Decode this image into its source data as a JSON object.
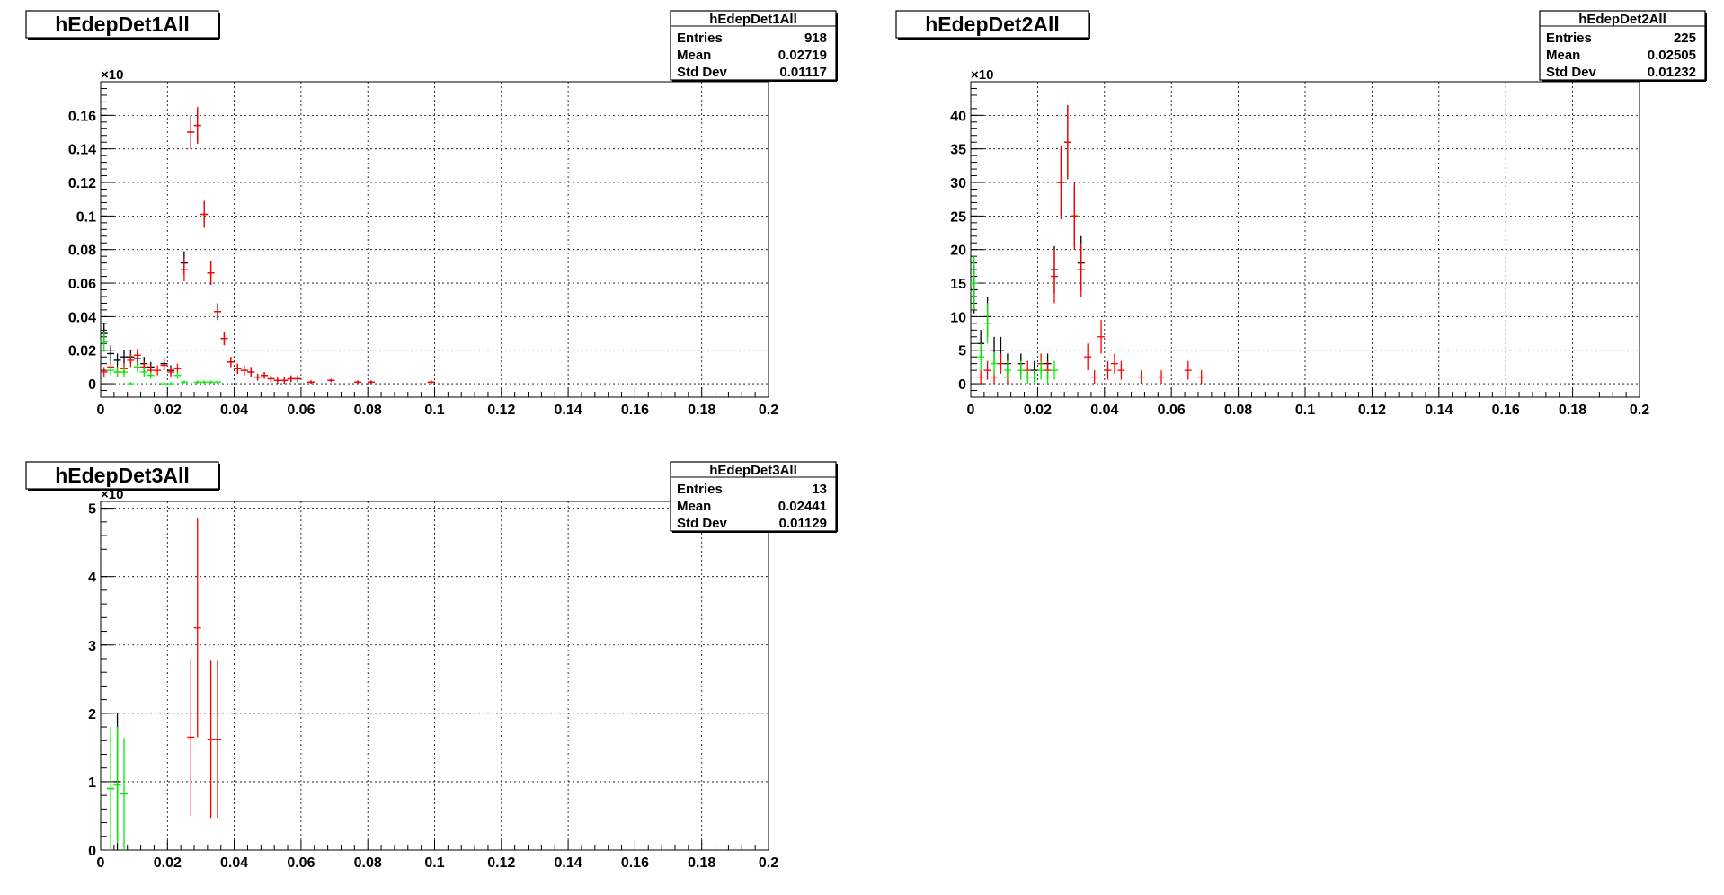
{
  "chart_data": [
    {
      "type": "scatter",
      "title": "hEdepDet1All",
      "stats": {
        "title": "hEdepDet1All",
        "rows": [
          [
            "Entries",
            "918"
          ],
          [
            "Mean",
            "0.02719"
          ],
          [
            "Std Dev",
            "0.01117"
          ]
        ]
      },
      "y_multiplier": "×10",
      "xlim": [
        0,
        0.2
      ],
      "ylim": [
        -0.008,
        0.18
      ],
      "grid": true,
      "x_ticks": [
        0,
        0.02,
        0.04,
        0.06,
        0.08,
        0.1,
        0.12,
        0.14,
        0.16,
        0.18,
        0.2
      ],
      "x_tick_labels": [
        "0",
        "0.02",
        "0.04",
        "0.06",
        "0.08",
        "0.1",
        "0.12",
        "0.14",
        "0.16",
        "0.18",
        "0.2"
      ],
      "y_ticks": [
        0,
        0.02,
        0.04,
        0.06,
        0.08,
        0.1,
        0.12,
        0.14,
        0.16
      ],
      "y_tick_labels": [
        "0",
        "0.02",
        "0.04",
        "0.06",
        "0.08",
        "0.1",
        "0.12",
        "0.14",
        "0.16"
      ],
      "series": [
        {
          "color": "#000000",
          "points": [
            [
              0.001,
              0.03,
              0.006
            ],
            [
              0.003,
              0.018,
              0.005
            ],
            [
              0.005,
              0.014,
              0.004
            ],
            [
              0.007,
              0.016,
              0.004
            ],
            [
              0.009,
              0.016,
              0.004
            ],
            [
              0.011,
              0.015,
              0.004
            ],
            [
              0.013,
              0.012,
              0.004
            ],
            [
              0.015,
              0.01,
              0.003
            ],
            [
              0.019,
              0.012,
              0.004
            ],
            [
              0.021,
              0.008,
              0.003
            ],
            [
              0.025,
              0.072,
              0.007
            ],
            [
              0.027,
              0.15,
              0.01
            ],
            [
              0.029,
              0.154,
              0.01
            ],
            [
              0.031,
              0.101,
              0.008
            ],
            [
              0.033,
              0.066,
              0.007
            ],
            [
              0.035,
              0.043,
              0.005
            ],
            [
              0.037,
              0.027,
              0.004
            ],
            [
              0.039,
              0.013,
              0.003
            ],
            [
              0.041,
              0.009,
              0.003
            ],
            [
              0.043,
              0.008,
              0.003
            ],
            [
              0.045,
              0.007,
              0.003
            ],
            [
              0.047,
              0.004,
              0.002
            ],
            [
              0.049,
              0.005,
              0.002
            ],
            [
              0.051,
              0.003,
              0.002
            ],
            [
              0.053,
              0.002,
              0.002
            ],
            [
              0.055,
              0.002,
              0.002
            ],
            [
              0.057,
              0.003,
              0.002
            ],
            [
              0.059,
              0.003,
              0.002
            ],
            [
              0.063,
              0.001,
              0.001
            ],
            [
              0.069,
              0.002,
              0.001
            ],
            [
              0.077,
              0.001,
              0.001
            ],
            [
              0.081,
              0.001,
              0.001
            ],
            [
              0.099,
              0.001,
              0.001
            ]
          ]
        },
        {
          "color": "#ff0000",
          "points": [
            [
              0.001,
              0.007,
              0.003
            ],
            [
              0.003,
              0.01,
              0.003
            ],
            [
              0.005,
              0.007,
              0.003
            ],
            [
              0.007,
              0.009,
              0.003
            ],
            [
              0.009,
              0.014,
              0.004
            ],
            [
              0.011,
              0.017,
              0.004
            ],
            [
              0.013,
              0.01,
              0.003
            ],
            [
              0.015,
              0.008,
              0.003
            ],
            [
              0.017,
              0.008,
              0.003
            ],
            [
              0.019,
              0.011,
              0.003
            ],
            [
              0.021,
              0.007,
              0.003
            ],
            [
              0.023,
              0.009,
              0.003
            ],
            [
              0.025,
              0.068,
              0.007
            ],
            [
              0.027,
              0.15,
              0.01
            ],
            [
              0.029,
              0.154,
              0.011
            ],
            [
              0.031,
              0.101,
              0.008
            ],
            [
              0.033,
              0.066,
              0.007
            ],
            [
              0.035,
              0.043,
              0.005
            ],
            [
              0.037,
              0.027,
              0.004
            ],
            [
              0.039,
              0.013,
              0.003
            ],
            [
              0.041,
              0.009,
              0.003
            ],
            [
              0.043,
              0.008,
              0.003
            ],
            [
              0.045,
              0.007,
              0.003
            ],
            [
              0.047,
              0.004,
              0.002
            ],
            [
              0.049,
              0.005,
              0.002
            ],
            [
              0.051,
              0.003,
              0.002
            ],
            [
              0.053,
              0.002,
              0.002
            ],
            [
              0.055,
              0.002,
              0.002
            ],
            [
              0.057,
              0.003,
              0.002
            ],
            [
              0.059,
              0.003,
              0.002
            ],
            [
              0.063,
              0.001,
              0.001
            ],
            [
              0.069,
              0.002,
              0.001
            ],
            [
              0.077,
              0.001,
              0.001
            ],
            [
              0.081,
              0.001,
              0.001
            ],
            [
              0.099,
              0.001,
              0.001
            ]
          ]
        },
        {
          "color": "#00ee00",
          "points": [
            [
              0.001,
              0.025,
              0.006
            ],
            [
              0.003,
              0.008,
              0.003
            ],
            [
              0.005,
              0.007,
              0.003
            ],
            [
              0.007,
              0.007,
              0.003
            ],
            [
              0.009,
              0.0,
              0.001
            ],
            [
              0.011,
              0.01,
              0.003
            ],
            [
              0.013,
              0.007,
              0.003
            ],
            [
              0.015,
              0.005,
              0.002
            ],
            [
              0.019,
              0.0,
              0.001
            ],
            [
              0.021,
              0.0,
              0.001
            ],
            [
              0.023,
              0.005,
              0.002
            ],
            [
              0.025,
              0.001,
              0.001
            ],
            [
              0.029,
              0.001,
              0.001
            ],
            [
              0.031,
              0.001,
              0.001
            ],
            [
              0.033,
              0.001,
              0.001
            ],
            [
              0.035,
              0.001,
              0.001
            ]
          ]
        }
      ]
    },
    {
      "type": "scatter",
      "title": "hEdepDet2All",
      "stats": {
        "title": "hEdepDet2All",
        "rows": [
          [
            "Entries",
            "225"
          ],
          [
            "Mean",
            "0.02505"
          ],
          [
            "Std Dev",
            "0.01232"
          ]
        ]
      },
      "y_multiplier": "×10",
      "xlim": [
        0,
        0.2
      ],
      "ylim": [
        -2,
        45
      ],
      "grid": true,
      "x_ticks": [
        0,
        0.02,
        0.04,
        0.06,
        0.08,
        0.1,
        0.12,
        0.14,
        0.16,
        0.18,
        0.2
      ],
      "x_tick_labels": [
        "0",
        "0.02",
        "0.04",
        "0.06",
        "0.08",
        "0.1",
        "0.12",
        "0.14",
        "0.16",
        "0.18",
        "0.2"
      ],
      "y_ticks": [
        0,
        5,
        10,
        15,
        20,
        25,
        30,
        35,
        40
      ],
      "y_tick_labels": [
        "0",
        "5",
        "10",
        "15",
        "20",
        "25",
        "30",
        "35",
        "40"
      ],
      "series": [
        {
          "color": "#000000",
          "points": [
            [
              0.001,
              14,
              3.5
            ],
            [
              0.003,
              6,
              2
            ],
            [
              0.005,
              10,
              3
            ],
            [
              0.007,
              5,
              2
            ],
            [
              0.009,
              5,
              2
            ],
            [
              0.011,
              3,
              1.5
            ],
            [
              0.015,
              3,
              1.5
            ],
            [
              0.019,
              2,
              1.4
            ],
            [
              0.023,
              3,
              1.5
            ],
            [
              0.025,
              17,
              3.5
            ],
            [
              0.027,
              30,
              5
            ],
            [
              0.029,
              36,
              5.5
            ],
            [
              0.031,
              25,
              4.5
            ],
            [
              0.033,
              18,
              4
            ]
          ]
        },
        {
          "color": "#ff0000",
          "points": [
            [
              0.003,
              1,
              1
            ],
            [
              0.005,
              2,
              1.4
            ],
            [
              0.007,
              1,
              1
            ],
            [
              0.009,
              3,
              1.5
            ],
            [
              0.011,
              1,
              1
            ],
            [
              0.015,
              2,
              1.4
            ],
            [
              0.017,
              2,
              1.4
            ],
            [
              0.021,
              3,
              1.5
            ],
            [
              0.023,
              2,
              1.4
            ],
            [
              0.025,
              16,
              4
            ],
            [
              0.027,
              30,
              5.5
            ],
            [
              0.029,
              36,
              5.5
            ],
            [
              0.031,
              25,
              5
            ],
            [
              0.033,
              17,
              4
            ],
            [
              0.035,
              4,
              2
            ],
            [
              0.037,
              1,
              1
            ],
            [
              0.039,
              7,
              2.5
            ],
            [
              0.041,
              2,
              1.4
            ],
            [
              0.043,
              3,
              1.5
            ],
            [
              0.045,
              2,
              1.4
            ],
            [
              0.051,
              1,
              1
            ],
            [
              0.057,
              1,
              1
            ],
            [
              0.065,
              2,
              1.4
            ],
            [
              0.069,
              1,
              1
            ]
          ]
        },
        {
          "color": "#00ee00",
          "points": [
            [
              0.001,
              15,
              4
            ],
            [
              0.003,
              4,
              2
            ],
            [
              0.005,
              9,
              3
            ],
            [
              0.007,
              3,
              1.7
            ],
            [
              0.011,
              2,
              1.4
            ],
            [
              0.015,
              2,
              1.4
            ],
            [
              0.017,
              1,
              1
            ],
            [
              0.019,
              1,
              1
            ],
            [
              0.021,
              2,
              1.4
            ],
            [
              0.023,
              1,
              1
            ],
            [
              0.025,
              2,
              1.4
            ]
          ]
        }
      ]
    },
    {
      "type": "scatter",
      "title": "hEdepDet3All",
      "stats": {
        "title": "hEdepDet3All",
        "rows": [
          [
            "Entries",
            "13"
          ],
          [
            "Mean",
            "0.02441"
          ],
          [
            "Std Dev",
            "0.01129"
          ]
        ]
      },
      "y_multiplier": "×10",
      "xlim": [
        0,
        0.2
      ],
      "ylim": [
        0,
        5.1
      ],
      "grid": true,
      "x_ticks": [
        0,
        0.02,
        0.04,
        0.06,
        0.08,
        0.1,
        0.12,
        0.14,
        0.16,
        0.18,
        0.2
      ],
      "x_tick_labels": [
        "0",
        "0.02",
        "0.04",
        "0.06",
        "0.08",
        "0.1",
        "0.12",
        "0.14",
        "0.16",
        "0.18",
        "0.2"
      ],
      "y_ticks": [
        0,
        1,
        2,
        3,
        4,
        5
      ],
      "y_tick_labels": [
        "0",
        "1",
        "2",
        "3",
        "4",
        "5"
      ],
      "series": [
        {
          "color": "#000000",
          "points": [
            [
              0.003,
              0.9,
              0.9
            ],
            [
              0.005,
              1.0,
              1.0
            ]
          ]
        },
        {
          "color": "#ff0000",
          "points": [
            [
              0.027,
              1.65,
              1.15
            ],
            [
              0.029,
              3.25,
              1.6
            ],
            [
              0.033,
              1.62,
              1.15
            ],
            [
              0.035,
              1.62,
              1.15
            ]
          ]
        },
        {
          "color": "#00ee00",
          "points": [
            [
              0.003,
              0.9,
              0.9
            ],
            [
              0.005,
              0.95,
              0.85
            ],
            [
              0.007,
              0.82,
              0.82
            ]
          ]
        }
      ]
    }
  ]
}
